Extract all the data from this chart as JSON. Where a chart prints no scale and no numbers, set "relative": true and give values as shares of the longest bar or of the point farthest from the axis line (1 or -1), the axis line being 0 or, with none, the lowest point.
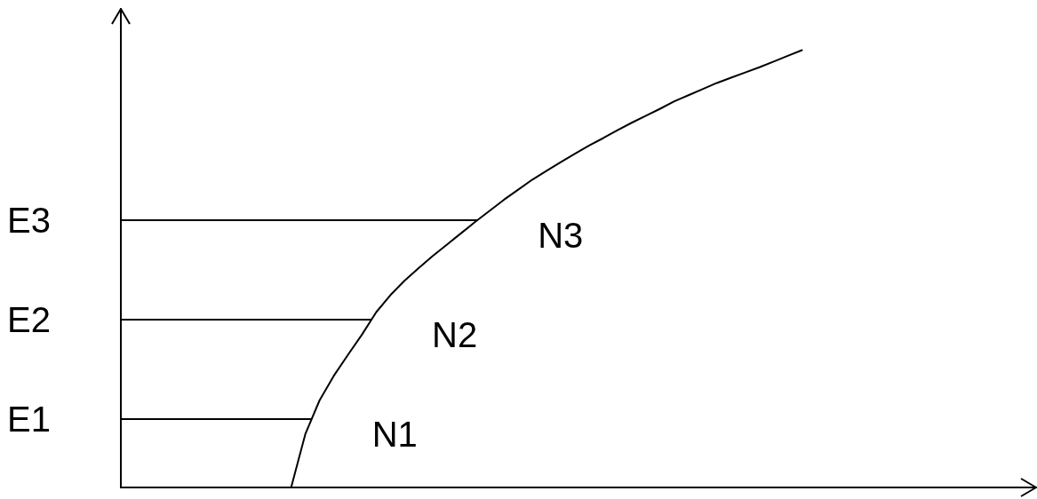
{
  "chart_data": {
    "type": "line",
    "relative": true,
    "marker": "none",
    "categories": [
      null,
      null,
      null,
      null,
      null,
      null,
      null,
      null,
      null,
      null,
      null,
      null,
      null,
      null,
      null,
      null,
      null,
      null,
      null,
      null,
      null,
      null,
      null,
      null,
      null,
      null,
      null,
      null,
      null,
      null,
      null,
      null,
      null,
      null,
      null,
      null,
      null,
      null,
      null,
      null,
      null,
      null,
      null,
      null,
      null,
      null,
      null,
      null,
      null,
      null,
      null,
      null,
      null,
      null,
      null,
      null,
      null,
      null,
      null,
      null,
      null,
      null,
      null,
      null,
      null
    ],
    "series": [
      {
        "color": "#000000",
        "values": [
          null,
          null,
          null,
          null,
          null,
          null,
          null,
          null,
          null,
          null,
          null,
          null,
          0,
          0.122,
          0.199,
          0.255,
          0.303,
          0.35,
          0.401,
          0.44,
          0.473,
          0.502,
          0.53,
          0.556,
          0.582,
          0.608,
          0.633,
          0.658,
          0.681,
          0.704,
          0.724,
          0.744,
          0.763,
          0.782,
          0.799,
          0.817,
          0.834,
          0.85,
          0.866,
          0.883,
          0.897,
          0.911,
          0.925,
          0.937,
          0.949,
          0.961,
          0.974,
          0.987,
          1,
          null,
          null,
          null,
          null,
          null,
          null,
          null,
          null,
          null,
          null,
          null,
          null,
          null,
          null,
          null,
          null
        ]
      }
    ],
    "ref_lines": [
      {
        "axis": "y",
        "value": 0.156,
        "label": "E1",
        "color": "#000000"
      },
      {
        "axis": "y",
        "value": 0.384,
        "label": "E2",
        "color": "#000000"
      },
      {
        "axis": "y",
        "value": 0.611,
        "label": "E3",
        "color": "#000000"
      }
    ],
    "annotations": [
      "N1",
      "N2",
      "N3"
    ]
  }
}
